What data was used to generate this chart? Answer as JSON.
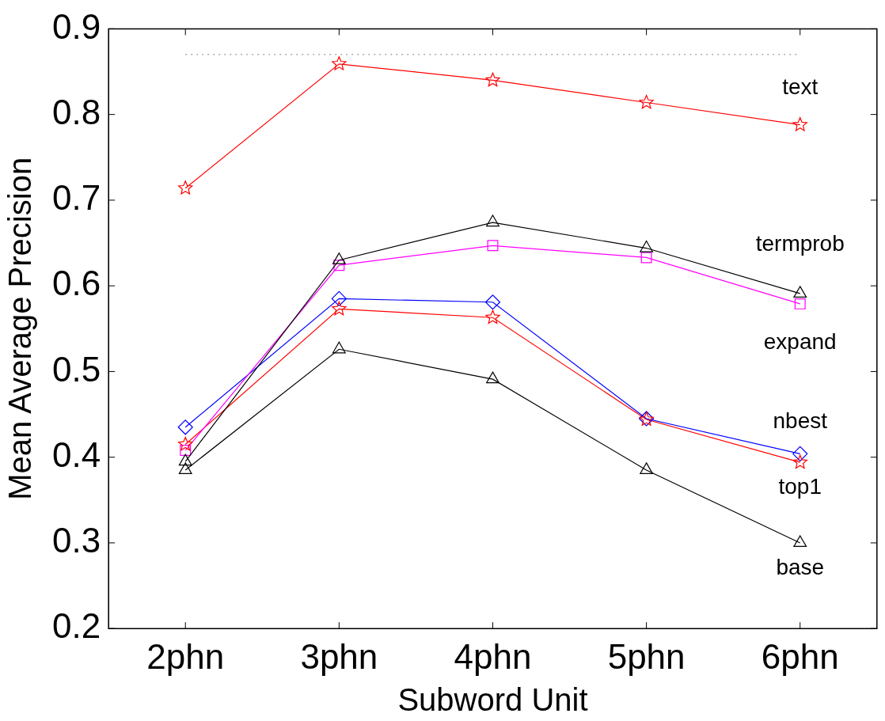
{
  "chart_data": {
    "type": "line",
    "xlabel": "Subword Unit",
    "ylabel": "Mean Average Precision",
    "categories": [
      "2phn",
      "3phn",
      "4phn",
      "5phn",
      "6phn"
    ],
    "ylim": [
      0.2,
      0.9
    ],
    "yticks": [
      0.2,
      0.3,
      0.4,
      0.5,
      0.6,
      0.7,
      0.8,
      0.9
    ],
    "grid": false,
    "legend": false,
    "series": [
      {
        "name": "text",
        "color": "#ff0000",
        "marker": "star",
        "values": [
          0.714,
          0.859,
          0.84,
          0.814,
          0.788
        ]
      },
      {
        "name": "termprob",
        "color": "#000000",
        "marker": "triangle",
        "values": [
          0.395,
          0.63,
          0.674,
          0.644,
          0.591
        ]
      },
      {
        "name": "expand",
        "color": "#ff00ff",
        "marker": "square",
        "values": [
          0.408,
          0.624,
          0.647,
          0.633,
          0.579
        ]
      },
      {
        "name": "nbest",
        "color": "#0000ff",
        "marker": "diamond",
        "values": [
          0.435,
          0.585,
          0.581,
          0.445,
          0.404
        ]
      },
      {
        "name": "top1",
        "color": "#ff0000",
        "marker": "star",
        "values": [
          0.415,
          0.573,
          0.563,
          0.444,
          0.394
        ]
      },
      {
        "name": "base",
        "color": "#000000",
        "marker": "triangle",
        "values": [
          0.385,
          0.526,
          0.491,
          0.385,
          0.3
        ]
      }
    ],
    "ref_lines": [
      {
        "axis": "y",
        "value": 0.87,
        "color": "#808080",
        "line_style": "dotted"
      }
    ]
  }
}
